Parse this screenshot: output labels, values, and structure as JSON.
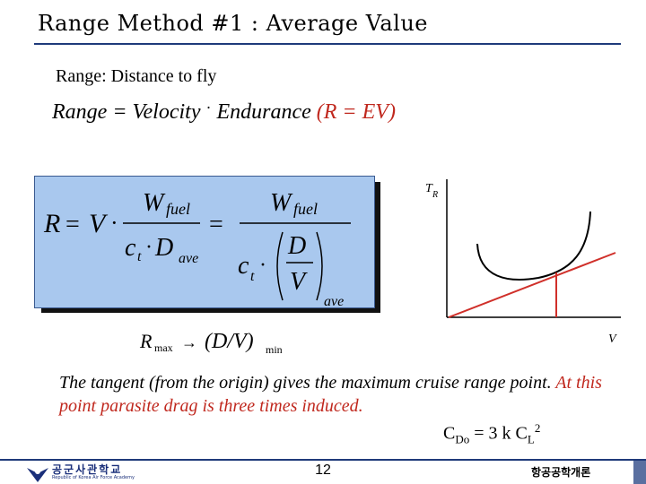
{
  "title": "Range Method #1 : Average Value",
  "subtitle": "Range:  Distance to fly",
  "equation": {
    "left": "Range = Velocity",
    "dot": "·",
    "right": "Endurance",
    "paren": "(R = EV)"
  },
  "formula": {
    "R": "R",
    "eq": "=",
    "V": "V",
    "dot": "·",
    "W": "W",
    "fuel": "fuel",
    "c": "c",
    "t": "t",
    "D": "D",
    "ave": "ave",
    "Dbig": "D",
    "Vbig": "V"
  },
  "rmax": {
    "R": "R",
    "max": "max",
    "arrow": "→",
    "expr": "(D/V)",
    "min": "min"
  },
  "graph": {
    "y_label": "T",
    "y_sub": "R",
    "x_label": "V"
  },
  "statement": {
    "black": "The tangent (from the origin) gives the maximum cruise range point.  ",
    "red": "At this point parasite drag is three times induced."
  },
  "cdo": {
    "C": "C",
    "sub1": "Do",
    "mid": " = 3 k C",
    "sub2": "L",
    "sup": "2"
  },
  "footer": {
    "logo_text": "공군사관학교",
    "logo_sub": "Republic of Korea Air Force Academy",
    "page": "12",
    "course": "항공공학개론"
  },
  "colors": {
    "accent_blue": "#1f3a7a",
    "formula_bg": "#a9c8ee",
    "highlight_red": "#c0281e"
  }
}
